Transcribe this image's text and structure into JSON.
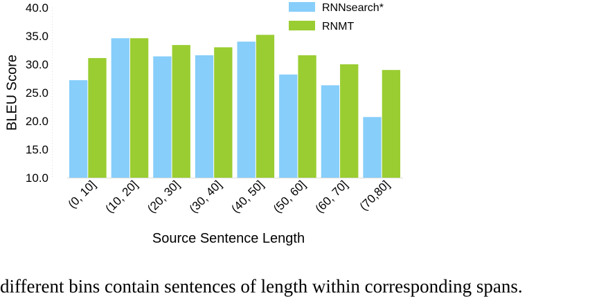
{
  "chart_data": {
    "type": "bar",
    "ylabel": "BLEU Score",
    "xlabel": "Source Sentence Length",
    "ylim": [
      10.0,
      40.0
    ],
    "yticks": [
      "10.0",
      "15.0",
      "20.0",
      "25.0",
      "30.0",
      "35.0",
      "40.0"
    ],
    "categories": [
      "(0, 10]",
      "(10, 20]",
      "(20, 30]",
      "(30, 40]",
      "(40, 50]",
      "(50, 60]",
      "(60, 70]",
      "(70,80]"
    ],
    "series": [
      {
        "name": "RNNsearch*",
        "color": "#87cefa",
        "values": [
          27.2,
          34.6,
          31.4,
          31.6,
          34.0,
          28.2,
          26.3,
          20.7
        ]
      },
      {
        "name": "RNMT",
        "color": "#9acd32",
        "values": [
          31.1,
          34.6,
          33.4,
          33.0,
          35.2,
          31.6,
          30.0,
          29.0
        ]
      }
    ],
    "legend_position": "top-right",
    "grid": false
  },
  "caption": "different bins contain sentences of length within corresponding spans."
}
